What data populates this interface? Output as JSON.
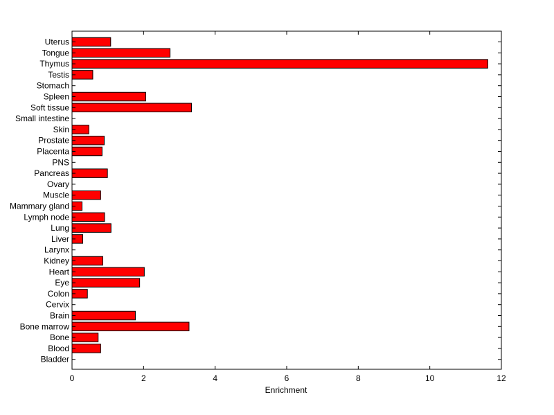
{
  "chart_data": {
    "type": "bar",
    "orientation": "horizontal",
    "title": "",
    "xlabel": "Enrichment",
    "ylabel": "",
    "xlim": [
      0,
      12
    ],
    "xticks": [
      "0",
      "2",
      "4",
      "6",
      "8",
      "10",
      "12"
    ],
    "grid": false,
    "bar_color": "#ff0000",
    "bar_edge_color": "#000000",
    "categories": [
      "Uterus",
      "Tongue",
      "Thymus",
      "Testis",
      "Stomach",
      "Spleen",
      "Soft tissue",
      "Small intestine",
      "Skin",
      "Prostate",
      "Placenta",
      "PNS",
      "Pancreas",
      "Ovary",
      "Muscle",
      "Mammary gland",
      "Lymph node",
      "Lung",
      "Liver",
      "Larynx",
      "Kidney",
      "Heart",
      "Eye",
      "Colon",
      "Cervix",
      "Brain",
      "Bone marrow",
      "Bone",
      "Blood",
      "Bladder"
    ],
    "values": [
      1.08,
      2.74,
      11.62,
      0.58,
      0,
      2.06,
      3.34,
      0,
      0.47,
      0.9,
      0.84,
      0,
      0.99,
      0,
      0.8,
      0.28,
      0.91,
      1.09,
      0.3,
      0,
      0.86,
      2.02,
      1.89,
      0.43,
      0,
      1.77,
      3.27,
      0.73,
      0.8,
      0
    ]
  }
}
